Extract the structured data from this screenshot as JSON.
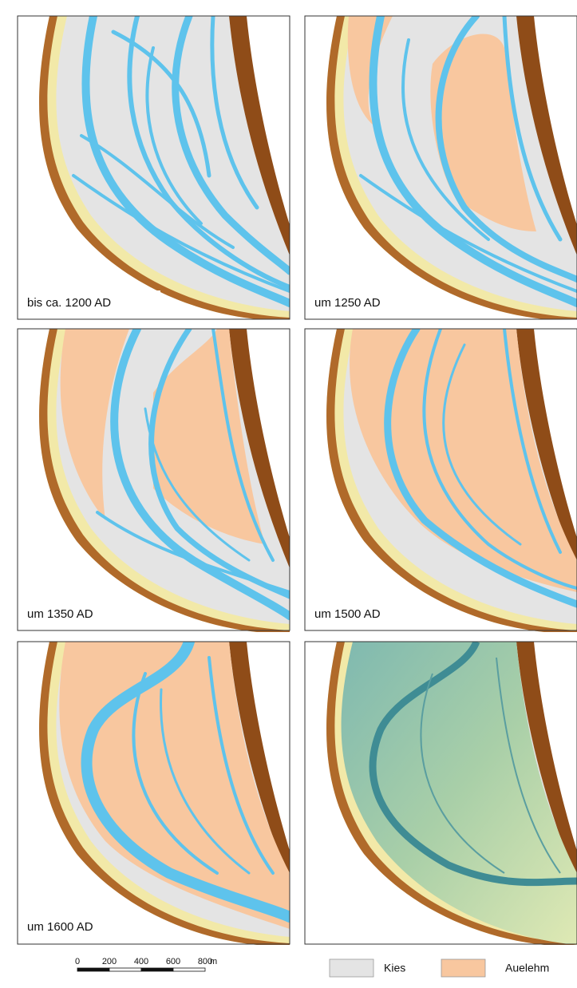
{
  "panels": [
    "bis ca. 1200 AD",
    "um 1250 AD",
    "um 1350 AD",
    "um 1500 AD",
    "um 1600 AD"
  ],
  "scale_bar": {
    "ticks": [
      0,
      200,
      400,
      600,
      800
    ],
    "unit": "m"
  },
  "legend": [
    {
      "label": "Kies",
      "color": "#e4e4e4"
    },
    {
      "label": "Auelehm",
      "color": "#f8c79f"
    }
  ]
}
